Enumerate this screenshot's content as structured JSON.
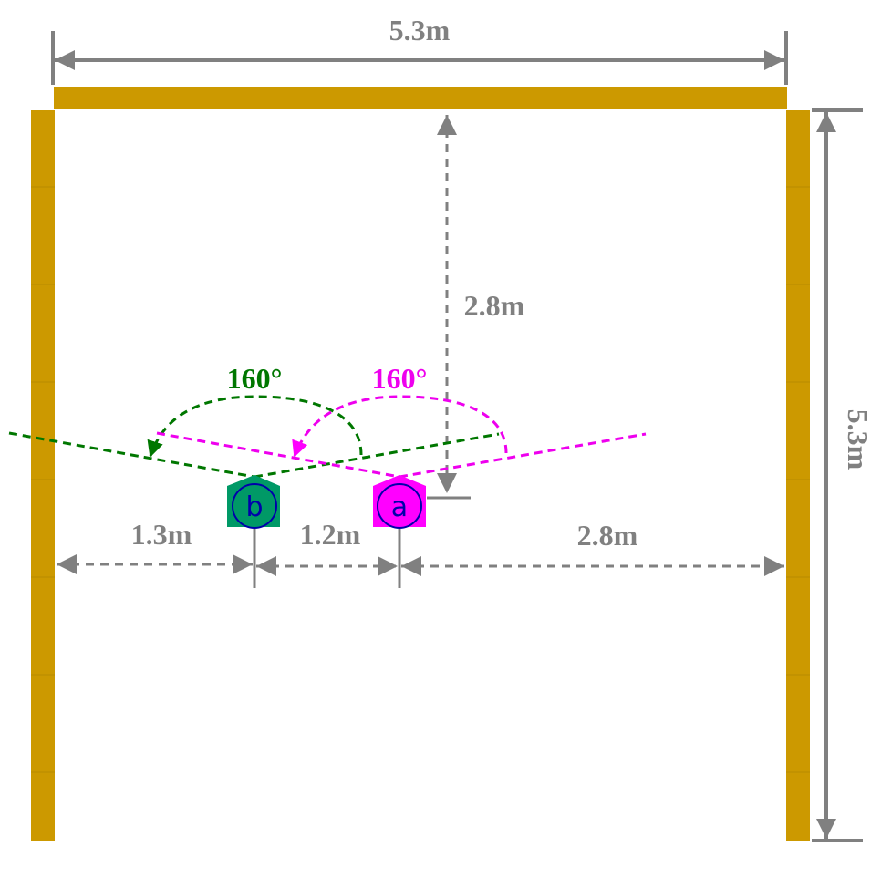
{
  "colors": {
    "wall": "#CC9900",
    "dimension": "#808080",
    "sensor_a": "#FF00FF",
    "sensor_b": "#009966",
    "sensor_letter": "#0000AA",
    "angle_a": "#EE00EE",
    "angle_b": "#007700"
  },
  "dimensions": {
    "top_width": "5.3m",
    "right_height": "5.3m",
    "sensor_to_wall": "2.8m",
    "left_gap": "1.3m",
    "sensor_gap": "1.2m",
    "right_gap": "2.8m"
  },
  "sensors": {
    "a": {
      "letter": "a",
      "fov_label": "160°"
    },
    "b": {
      "letter": "b",
      "fov_label": "160°"
    }
  }
}
